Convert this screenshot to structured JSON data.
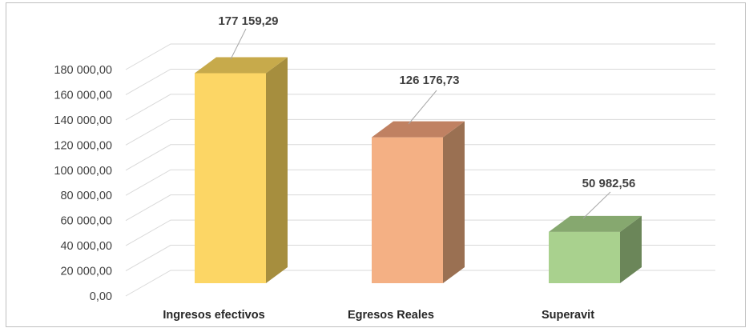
{
  "chart_data": {
    "type": "bar",
    "style": "3d-column",
    "categories": [
      "Ingresos efectivos",
      "Egresos Reales",
      "Superavit"
    ],
    "values": [
      177159.29,
      126176.73,
      50982.56
    ],
    "value_labels": [
      "177 159,29",
      "126 176,73",
      "50 982,56"
    ],
    "ylim": [
      0,
      180000
    ],
    "yticks": [
      0,
      20000,
      40000,
      60000,
      80000,
      100000,
      120000,
      140000,
      160000,
      180000
    ],
    "ytick_labels": [
      "0,00",
      "20 000,00",
      "40 000,00",
      "60 000,00",
      "80 000,00",
      "100 000,00",
      "120 000,00",
      "140 000,00",
      "160 000,00",
      "180 000,00"
    ],
    "grid": true,
    "title": "",
    "xlabel": "",
    "ylabel": "",
    "colors": [
      {
        "front": "#fcd665",
        "side": "#a68e3e",
        "top": "#c7aa4b"
      },
      {
        "front": "#f4b084",
        "side": "#9a7052",
        "top": "#c08162"
      },
      {
        "front": "#a9d18e",
        "side": "#6b8659",
        "top": "#86a86f"
      }
    ],
    "grid_color": "#d9d9d9"
  }
}
